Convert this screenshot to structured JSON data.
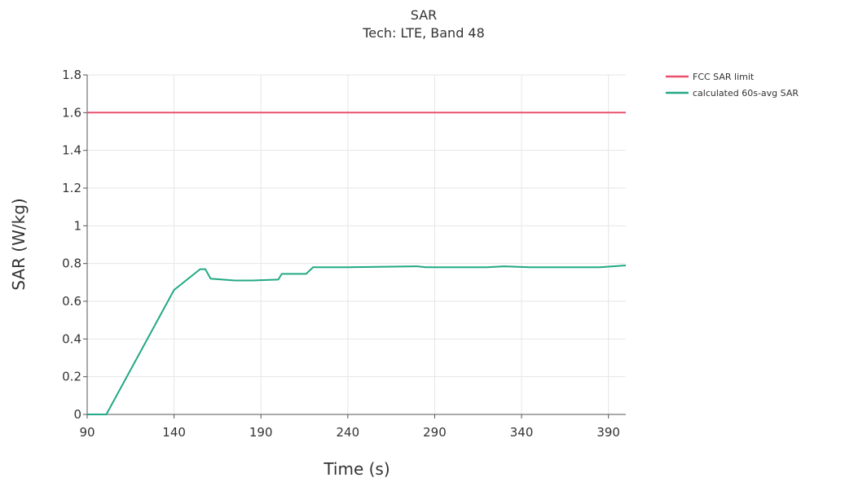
{
  "chart_data": {
    "type": "line",
    "title": "SAR",
    "subtitle": "Tech: LTE, Band 48",
    "xlabel": "Time (s)",
    "ylabel": "SAR (W/kg)",
    "xlim": [
      90,
      400
    ],
    "ylim": [
      0,
      1.8
    ],
    "xticks": [
      90,
      140,
      190,
      240,
      290,
      340,
      390
    ],
    "yticks": [
      0,
      0.2,
      0.4,
      0.6,
      0.8,
      1,
      1.2,
      1.4,
      1.6,
      1.8
    ],
    "xtick_labels": [
      "90",
      "140",
      "190",
      "240",
      "290",
      "340",
      "390"
    ],
    "ytick_labels": [
      "0",
      "0.2",
      "0.4",
      "0.6",
      "0.8",
      "1",
      "1.2",
      "1.4",
      "1.6",
      "1.8"
    ],
    "grid": true,
    "legend_position": "top-right, outside plot",
    "series": [
      {
        "name": "FCC SAR limit",
        "color": "#e8516e",
        "x": [
          90,
          400
        ],
        "y": [
          1.6,
          1.6
        ]
      },
      {
        "name": "calculated 60s-avg SAR",
        "color": "#22a884",
        "x": [
          90,
          101,
          140,
          155,
          158,
          161,
          175,
          185,
          200,
          202,
          212,
          216,
          220,
          240,
          280,
          285,
          320,
          330,
          345,
          385,
          400
        ],
        "y": [
          0,
          0,
          0.66,
          0.77,
          0.77,
          0.72,
          0.71,
          0.71,
          0.715,
          0.745,
          0.745,
          0.745,
          0.78,
          0.78,
          0.785,
          0.78,
          0.78,
          0.785,
          0.78,
          0.78,
          0.79
        ]
      }
    ]
  }
}
